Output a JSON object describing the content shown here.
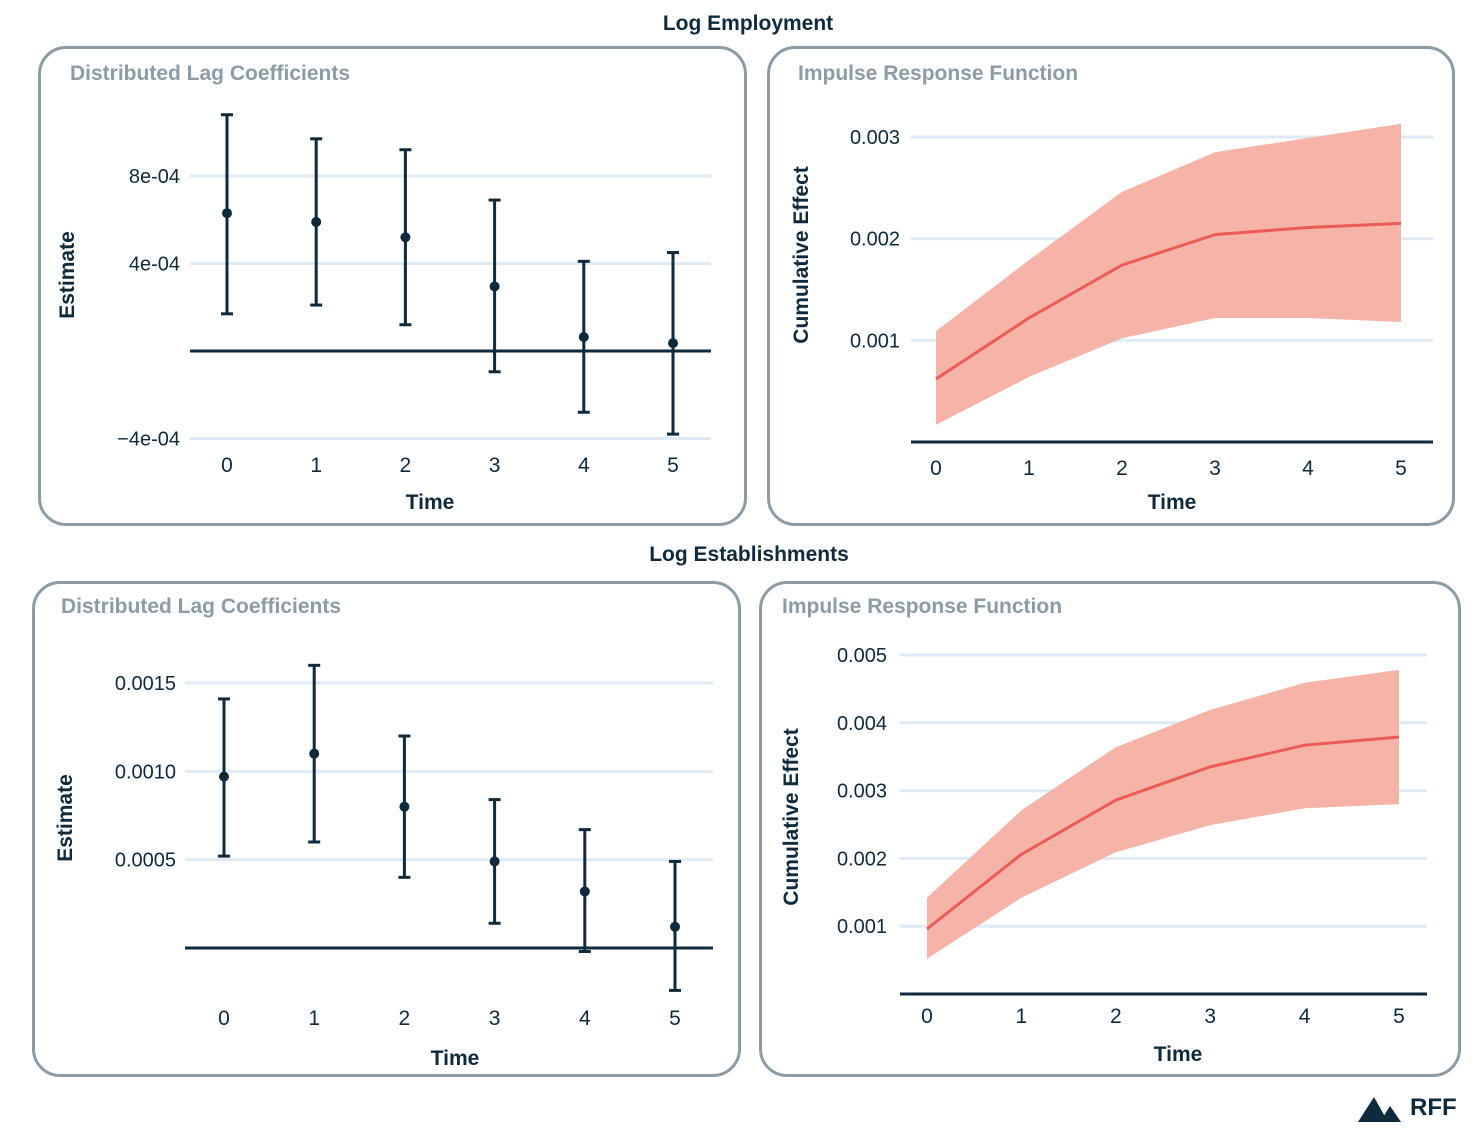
{
  "sections": [
    {
      "title": "Log Employment"
    },
    {
      "title": "Log Establishments"
    }
  ],
  "colors": {
    "dark": "#0f2a3d",
    "ribbon": "#f6afa3",
    "line": "#ec5b55",
    "grid": "#deebf7",
    "panel_border": "#8b9ca6"
  },
  "logo": {
    "text": "RFF",
    "icon": "mountain-icon"
  },
  "chart_data": [
    {
      "section": "Log Employment",
      "title": "Distributed Lag Coefficients",
      "type": "errorbar",
      "xlabel": "Time",
      "ylabel": "Estimate",
      "x": [
        0,
        1,
        2,
        3,
        4,
        5
      ],
      "xticks": [
        "0",
        "1",
        "2",
        "3",
        "4",
        "5"
      ],
      "yticks": [
        {
          "value": 0.0008,
          "label": "8e-04"
        },
        {
          "value": 0.0004,
          "label": "4e-04"
        },
        {
          "value": -0.0004,
          "label": "−4e-04"
        }
      ],
      "ylim": [
        -0.00043,
        0.00112
      ],
      "estimate": [
        0.00063,
        0.00059,
        0.00052,
        0.000295,
        6.4e-05,
        3.6e-05
      ],
      "lower": [
        0.00017,
        0.00021,
        0.00012,
        -9.5e-05,
        -0.00028,
        -0.00038
      ],
      "upper": [
        0.00108,
        0.00097,
        0.00092,
        0.00069,
        0.00041,
        0.00045
      ],
      "reference_line": 0,
      "grid": true
    },
    {
      "section": "Log Employment",
      "title": "Impulse Response Function",
      "type": "area",
      "xlabel": "Time",
      "ylabel": "Cumulative Effect",
      "x": [
        0,
        1,
        2,
        3,
        4,
        5
      ],
      "xticks": [
        "0",
        "1",
        "2",
        "3",
        "4",
        "5"
      ],
      "yticks": [
        {
          "value": 0.003,
          "label": "0.003"
        },
        {
          "value": 0.002,
          "label": "0.002"
        },
        {
          "value": 0.001,
          "label": "0.001"
        }
      ],
      "ylim": [
        0,
        0.0032
      ],
      "estimate": [
        0.00062,
        0.00122,
        0.00174,
        0.00204,
        0.00211,
        0.00215
      ],
      "lower": [
        0.00017,
        0.00064,
        0.00102,
        0.00122,
        0.00122,
        0.00118
      ],
      "upper": [
        0.00109,
        0.00179,
        0.00246,
        0.00285,
        0.00299,
        0.00313
      ],
      "grid": true
    },
    {
      "section": "Log Establishments",
      "title": "Distributed Lag Coefficients",
      "type": "errorbar",
      "xlabel": "Time",
      "ylabel": "Estimate",
      "x": [
        0,
        1,
        2,
        3,
        4,
        5
      ],
      "xticks": [
        "0",
        "1",
        "2",
        "3",
        "4",
        "5"
      ],
      "yticks": [
        {
          "value": 0.0015,
          "label": "0.0015"
        },
        {
          "value": 0.001,
          "label": "0.0010"
        },
        {
          "value": 0.0005,
          "label": "0.0005"
        }
      ],
      "ylim": [
        -0.0003,
        0.00163
      ],
      "estimate": [
        0.00097,
        0.0011,
        0.0008,
        0.00049,
        0.00032,
        0.00012
      ],
      "lower": [
        0.00052,
        0.0006,
        0.0004,
        0.00014,
        -2e-05,
        -0.00024
      ],
      "upper": [
        0.00141,
        0.0016,
        0.0012,
        0.00084,
        0.00067,
        0.00049
      ],
      "reference_line": 0,
      "grid": true
    },
    {
      "section": "Log Establishments",
      "title": "Impulse Response Function",
      "type": "area",
      "xlabel": "Time",
      "ylabel": "Cumulative Effect",
      "x": [
        0,
        1,
        2,
        3,
        4,
        5
      ],
      "xticks": [
        "0",
        "1",
        "2",
        "3",
        "4",
        "5"
      ],
      "yticks": [
        {
          "value": 0.005,
          "label": "0.005"
        },
        {
          "value": 0.004,
          "label": "0.004"
        },
        {
          "value": 0.003,
          "label": "0.003"
        },
        {
          "value": 0.002,
          "label": "0.002"
        },
        {
          "value": 0.001,
          "label": "0.001"
        }
      ],
      "ylim": [
        0,
        0.0051
      ],
      "estimate": [
        0.00096,
        0.00206,
        0.00286,
        0.00335,
        0.00367,
        0.00379
      ],
      "lower": [
        0.00052,
        0.00142,
        0.00209,
        0.00249,
        0.00274,
        0.0028
      ],
      "upper": [
        0.00142,
        0.00271,
        0.00364,
        0.00419,
        0.00459,
        0.00478
      ],
      "grid": true
    }
  ]
}
